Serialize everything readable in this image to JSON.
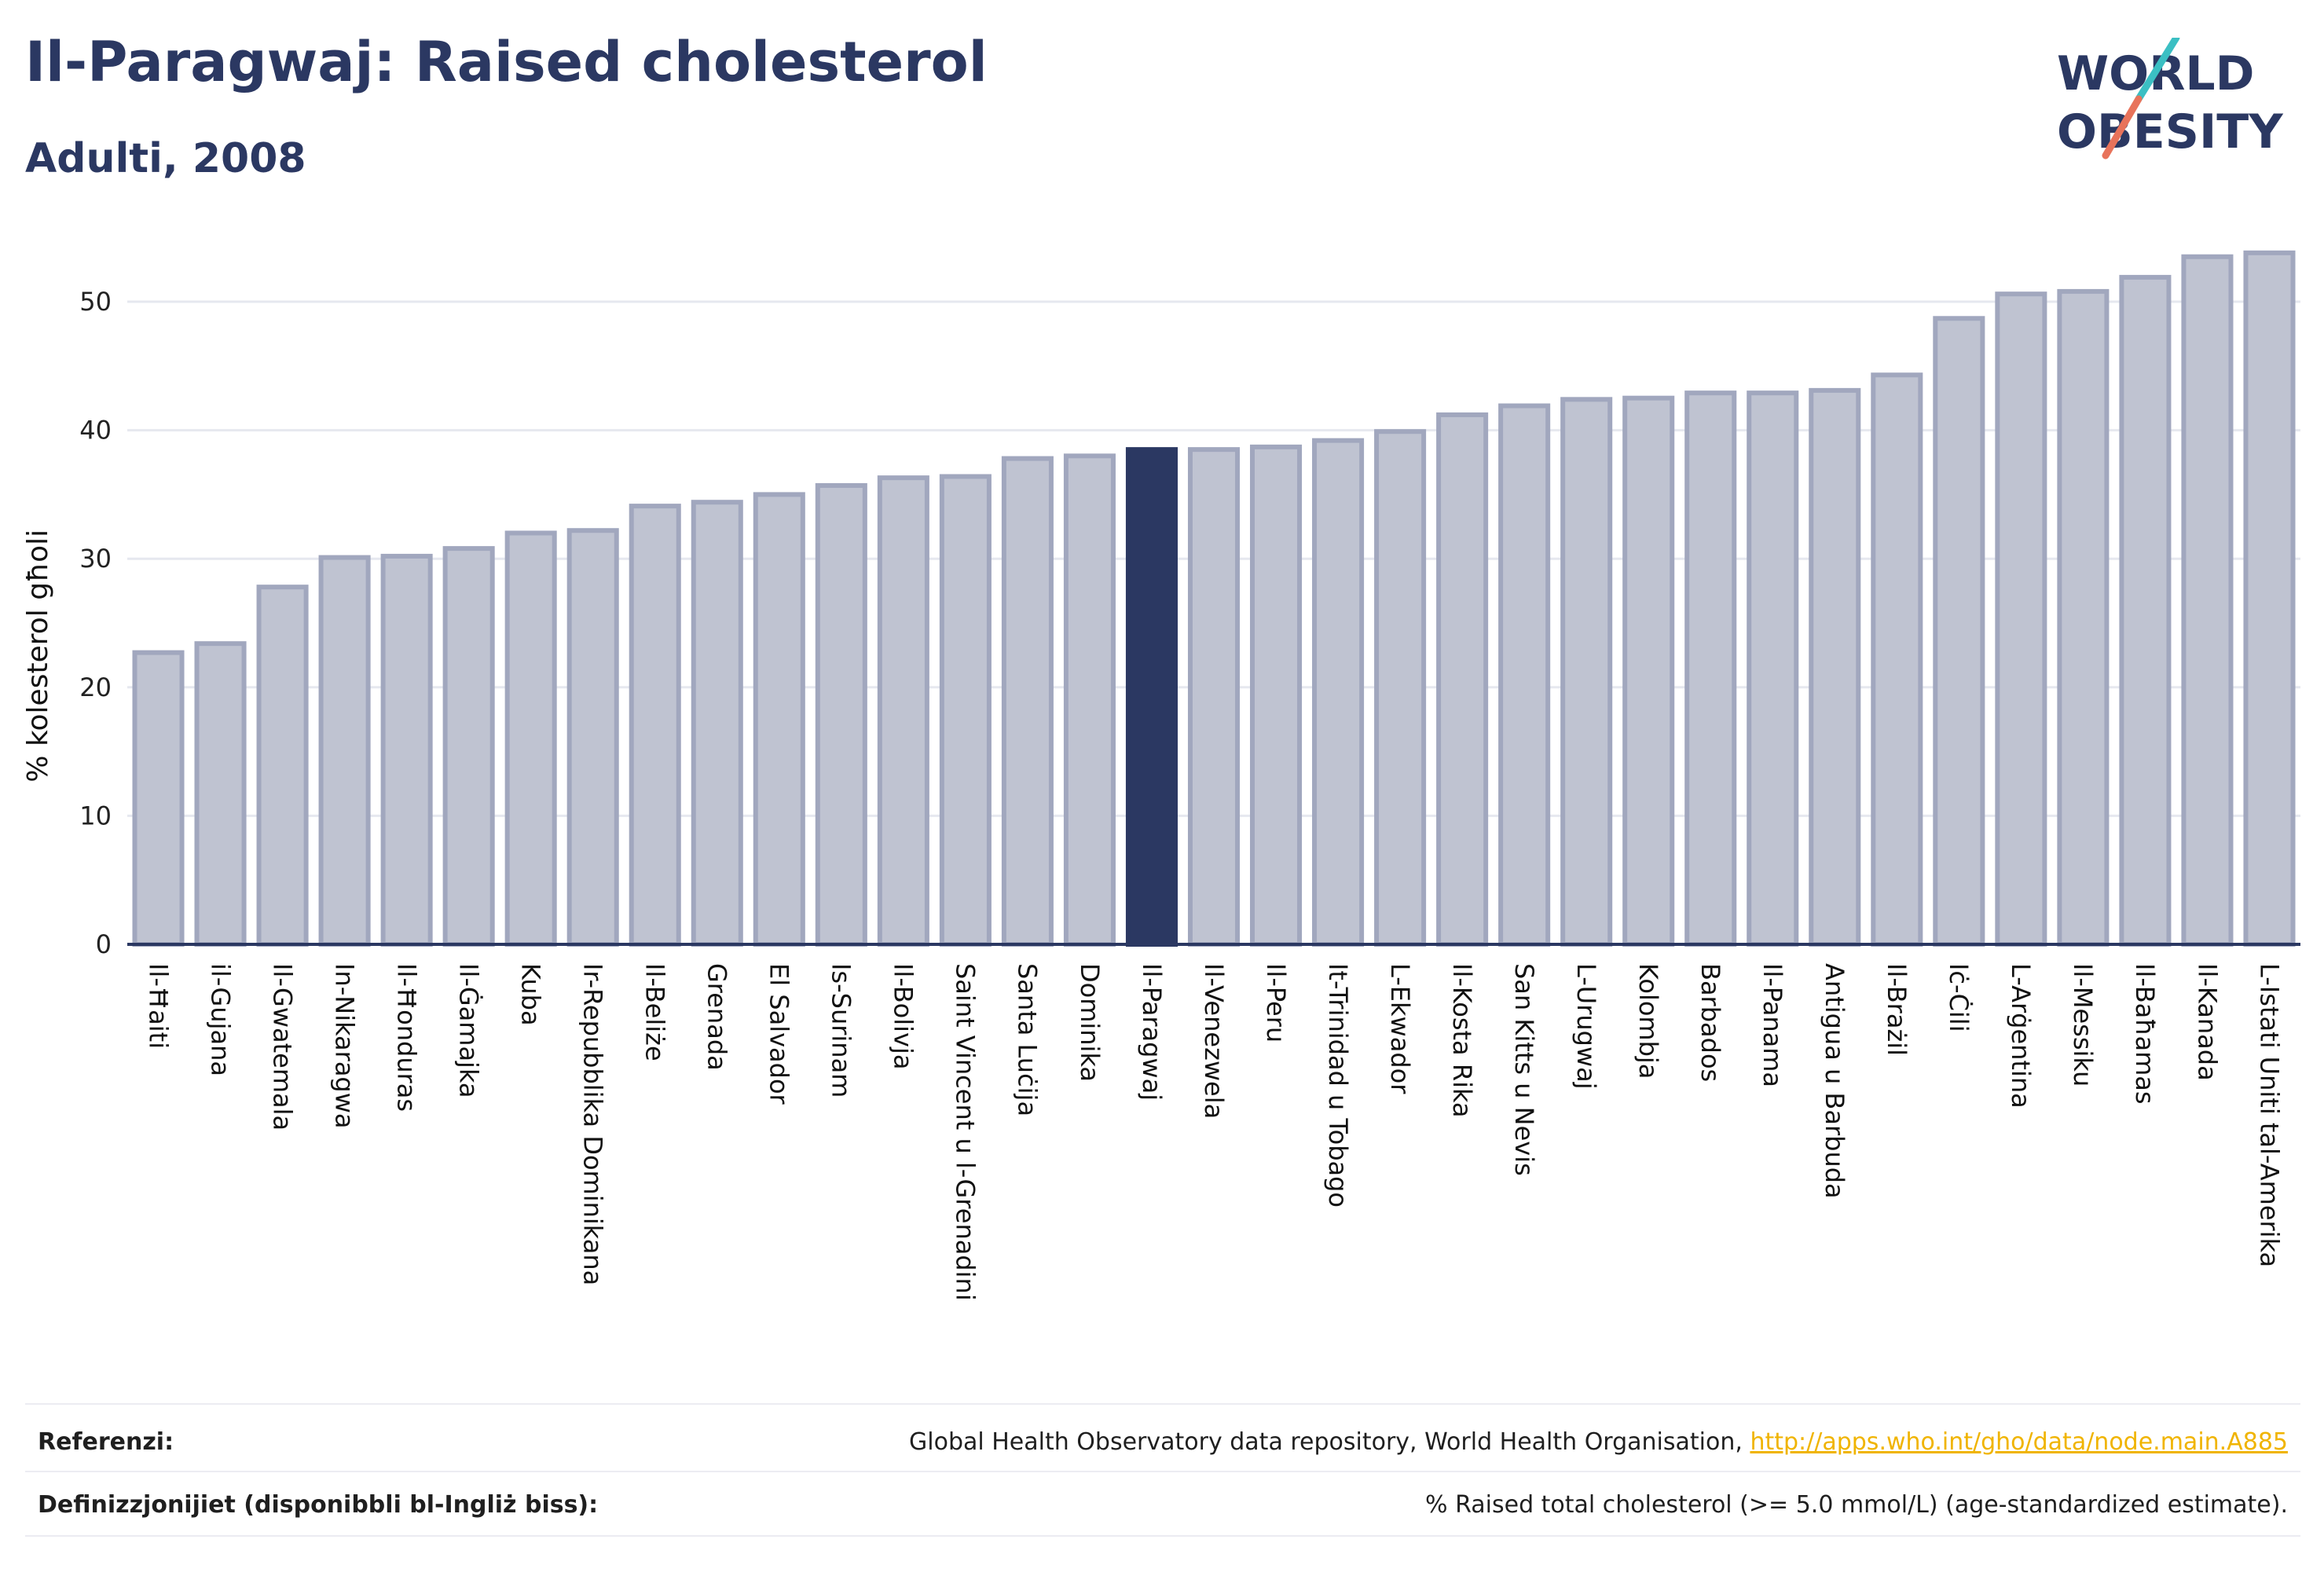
{
  "header": {
    "title": "Il-Paragwaj: Raised cholesterol",
    "subtitle": "Adulti, 2008"
  },
  "logo": {
    "line1": "WORLD",
    "line2": "OBESITY",
    "accent_colors": [
      "#3bbfc3",
      "#e8735b"
    ],
    "text_color": "#2b3862"
  },
  "chart_data": {
    "type": "bar",
    "title": "Il-Paragwaj: Raised cholesterol",
    "subtitle": "Adulti, 2008",
    "xlabel": "",
    "ylabel": "% kolesterol għoli",
    "ylim": [
      0,
      55
    ],
    "yticks": [
      0,
      10,
      20,
      30,
      40,
      50
    ],
    "grid": true,
    "highlight": "Il-Paragwaj",
    "colors": {
      "bar": "#bfc3d1",
      "bar_edge": "#a1a7be",
      "highlight": "#2b3862"
    },
    "categories": [
      "Il-Ħaiti",
      "il-Gujana",
      "Il-Gwatemala",
      "In-Nikaragwa",
      "Il-Ħonduras",
      "Il-Ġamajka",
      "Kuba",
      "Ir-Repubblika Dominikana",
      "Il-Beliże",
      "Grenada",
      "El Salvador",
      "Is-Surinam",
      "Il-Bolivja",
      "Saint Vincent u l-Grenadini",
      "Santa Luċija",
      "Dominika",
      "Il-Paragwaj",
      "Il-Venezwela",
      "Il-Peru",
      "It-Trinidad u Tobago",
      "L-Ekwador",
      "Il-Kosta Rika",
      "San Kitts u Nevis",
      "L-Urugwaj",
      "Kolombja",
      "Barbados",
      "Il-Panama",
      "Antigua u Barbuda",
      "Il-Brażil",
      "Iċ-Ċili",
      "L-Arġentina",
      "Il-Messiku",
      "Il-Baħamas",
      "Il-Kanada",
      "L-Istati Uniti tal-Amerika"
    ],
    "values": [
      22.7,
      23.4,
      27.8,
      30.1,
      30.2,
      30.8,
      32.0,
      32.2,
      34.1,
      34.4,
      35.0,
      35.7,
      36.3,
      36.4,
      37.8,
      38.0,
      38.5,
      38.5,
      38.7,
      39.2,
      39.9,
      41.2,
      41.9,
      42.4,
      42.5,
      42.9,
      42.9,
      43.1,
      44.3,
      48.7,
      50.6,
      50.8,
      51.9,
      53.5,
      53.8
    ]
  },
  "footer": {
    "references_label": "Referenzi:",
    "references_text": "Global Health Observatory data repository, World Health Organisation, ",
    "references_link": "http://apps.who.int/gho/data/node.main.A885",
    "definitions_label": "Definizzjonijiet (disponibbli bl-Ingliż biss):",
    "definitions_text": "% Raised total cholesterol (>= 5.0 mmol/L) (age-standardized estimate)."
  }
}
